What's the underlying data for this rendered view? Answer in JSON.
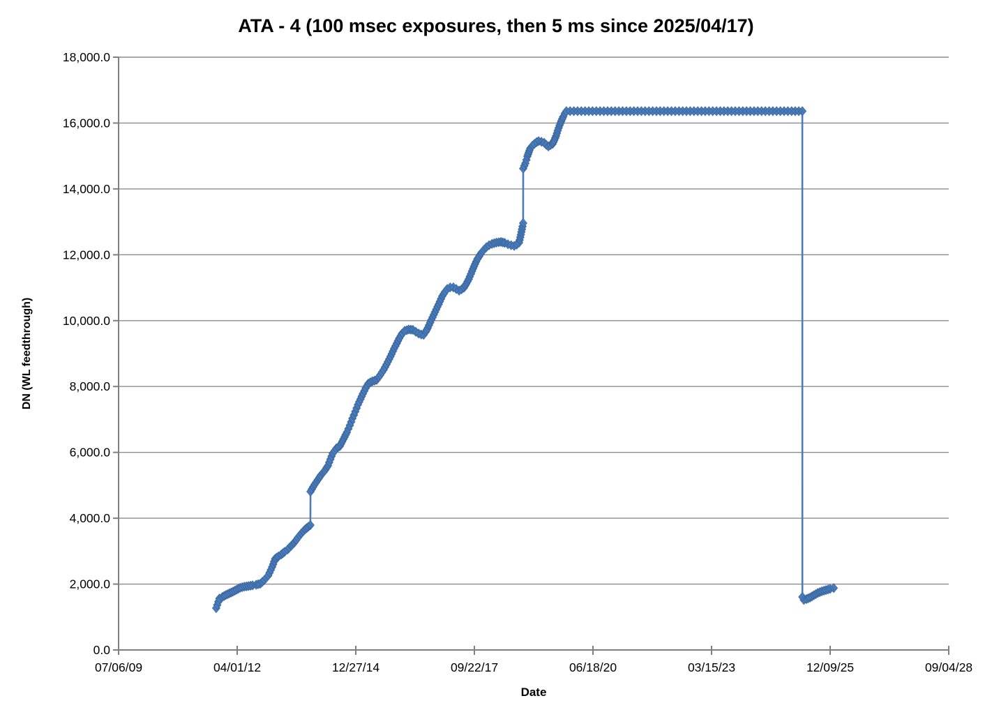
{
  "title": "ATA - 4 (100 msec exposures, then 5 ms since 2025/04/17)",
  "style": {
    "marker_color": "#4A7DBA",
    "marker_edge_color": "#3B67A0",
    "grid_color": "#8C8C8C",
    "axis_color": "#808080",
    "background": "#FFFFFF",
    "text_color": "#000000"
  },
  "chart_data": {
    "type": "scatter",
    "title": "ATA - 4 (100 msec exposures, then 5 ms since 2025/04/17)",
    "xlabel": "Date",
    "ylabel": "DN (WL feedthrough)",
    "grid": "horizontal-only",
    "legend": "none",
    "marker": "diamond",
    "marker_size_px": 12,
    "x_axis": {
      "base_date": "2009-07-06",
      "tick_interval_days": 1000,
      "span_days": 7000,
      "tick_labels": [
        "07/06/09",
        "04/01/12",
        "12/27/14",
        "09/22/17",
        "06/18/20",
        "03/15/23",
        "12/09/25",
        "09/04/28"
      ]
    },
    "y_axis": {
      "min": 0,
      "max": 18000,
      "step": 2000,
      "tick_labels": [
        "0.0",
        "2,000.0",
        "4,000.0",
        "6,000.0",
        "8,000.0",
        "10,000.0",
        "12,000.0",
        "14,000.0",
        "16,000.0",
        "18,000.0"
      ]
    },
    "key_events": {
      "first_point": "~Oct 2011 at ~1,270 DN",
      "step_jump_1": "~Dec 2013: ~3,800 to ~4,800 DN",
      "step_jump_2": "~Nov 2018: ~13,000 to ~14,600 DN",
      "saturation_plateau": "~Nov 2019 to 2025/04/17 at ~16,360 DN",
      "exposure_change_drop": "2025/04/17: drops to ~1,600 DN (5 ms exposures), recovering to ~1,880 DN"
    },
    "series": [
      {
        "name": "DN (WL feedthrough)",
        "x_units": "days since 2009-07-06",
        "points": [
          [
            823,
            1270
          ],
          [
            850,
            1560
          ],
          [
            875,
            1610
          ],
          [
            905,
            1670
          ],
          [
            935,
            1720
          ],
          [
            965,
            1770
          ],
          [
            995,
            1830
          ],
          [
            1025,
            1890
          ],
          [
            1060,
            1920
          ],
          [
            1095,
            1940
          ],
          [
            1130,
            1960
          ],
          [
            1160,
            1980
          ],
          [
            1194,
            2010
          ],
          [
            1228,
            2120
          ],
          [
            1262,
            2260
          ],
          [
            1295,
            2520
          ],
          [
            1320,
            2770
          ],
          [
            1348,
            2840
          ],
          [
            1372,
            2900
          ],
          [
            1400,
            2980
          ],
          [
            1425,
            3050
          ],
          [
            1455,
            3160
          ],
          [
            1482,
            3260
          ],
          [
            1512,
            3410
          ],
          [
            1541,
            3540
          ],
          [
            1572,
            3660
          ],
          [
            1600,
            3740
          ],
          [
            1617,
            3790
          ],
          [
            1618,
            4810
          ],
          [
            1640,
            4950
          ],
          [
            1665,
            5090
          ],
          [
            1688,
            5210
          ],
          [
            1706,
            5310
          ],
          [
            1724,
            5380
          ],
          [
            1745,
            5480
          ],
          [
            1766,
            5600
          ],
          [
            1786,
            5790
          ],
          [
            1806,
            5970
          ],
          [
            1836,
            6120
          ],
          [
            1866,
            6190
          ],
          [
            1896,
            6400
          ],
          [
            1925,
            6610
          ],
          [
            1950,
            6820
          ],
          [
            1972,
            7030
          ],
          [
            1996,
            7240
          ],
          [
            2018,
            7450
          ],
          [
            2040,
            7620
          ],
          [
            2060,
            7780
          ],
          [
            2083,
            7950
          ],
          [
            2106,
            8090
          ],
          [
            2140,
            8160
          ],
          [
            2176,
            8200
          ],
          [
            2206,
            8350
          ],
          [
            2235,
            8510
          ],
          [
            2259,
            8670
          ],
          [
            2282,
            8830
          ],
          [
            2303,
            8990
          ],
          [
            2323,
            9150
          ],
          [
            2346,
            9310
          ],
          [
            2366,
            9460
          ],
          [
            2390,
            9610
          ],
          [
            2413,
            9690
          ],
          [
            2447,
            9730
          ],
          [
            2482,
            9720
          ],
          [
            2506,
            9660
          ],
          [
            2530,
            9610
          ],
          [
            2552,
            9580
          ],
          [
            2572,
            9570
          ],
          [
            2590,
            9660
          ],
          [
            2607,
            9780
          ],
          [
            2627,
            9940
          ],
          [
            2647,
            10100
          ],
          [
            2668,
            10260
          ],
          [
            2689,
            10420
          ],
          [
            2709,
            10580
          ],
          [
            2729,
            10740
          ],
          [
            2751,
            10870
          ],
          [
            2771,
            10960
          ],
          [
            2796,
            11010
          ],
          [
            2823,
            11010
          ],
          [
            2847,
            10960
          ],
          [
            2871,
            10910
          ],
          [
            2892,
            10950
          ],
          [
            2912,
            11000
          ],
          [
            2932,
            11120
          ],
          [
            2953,
            11260
          ],
          [
            2971,
            11420
          ],
          [
            2989,
            11580
          ],
          [
            3006,
            11720
          ],
          [
            3024,
            11860
          ],
          [
            3041,
            11960
          ],
          [
            3059,
            12060
          ],
          [
            3080,
            12150
          ],
          [
            3101,
            12230
          ],
          [
            3124,
            12290
          ],
          [
            3148,
            12330
          ],
          [
            3186,
            12370
          ],
          [
            3224,
            12390
          ],
          [
            3256,
            12360
          ],
          [
            3283,
            12320
          ],
          [
            3310,
            12290
          ],
          [
            3336,
            12270
          ],
          [
            3357,
            12310
          ],
          [
            3377,
            12370
          ],
          [
            3392,
            12610
          ],
          [
            3406,
            12860
          ],
          [
            3411,
            12960
          ],
          [
            3412,
            14620
          ],
          [
            3421,
            14700
          ],
          [
            3430,
            14780
          ],
          [
            3439,
            14880
          ],
          [
            3447,
            14990
          ],
          [
            3459,
            15110
          ],
          [
            3471,
            15230
          ],
          [
            3489,
            15310
          ],
          [
            3507,
            15370
          ],
          [
            3525,
            15420
          ],
          [
            3542,
            15450
          ],
          [
            3566,
            15430
          ],
          [
            3589,
            15400
          ],
          [
            3606,
            15340
          ],
          [
            3624,
            15290
          ],
          [
            3642,
            15330
          ],
          [
            3660,
            15370
          ],
          [
            3674,
            15480
          ],
          [
            3689,
            15610
          ],
          [
            3703,
            15770
          ],
          [
            3718,
            15930
          ],
          [
            3733,
            16060
          ],
          [
            3748,
            16190
          ],
          [
            3763,
            16290
          ],
          [
            3776,
            16360
          ],
          [
            3870,
            16360
          ],
          [
            3965,
            16360
          ],
          [
            4060,
            16360
          ],
          [
            4155,
            16360
          ],
          [
            4250,
            16360
          ],
          [
            4345,
            16360
          ],
          [
            4440,
            16360
          ],
          [
            4535,
            16360
          ],
          [
            4630,
            16360
          ],
          [
            4725,
            16360
          ],
          [
            4820,
            16360
          ],
          [
            4915,
            16360
          ],
          [
            5010,
            16360
          ],
          [
            5105,
            16360
          ],
          [
            5200,
            16360
          ],
          [
            5295,
            16360
          ],
          [
            5390,
            16360
          ],
          [
            5485,
            16360
          ],
          [
            5580,
            16360
          ],
          [
            5675,
            16360
          ],
          [
            5765,
            16360
          ],
          [
            5766,
            1610
          ],
          [
            5778,
            1520
          ],
          [
            5800,
            1545
          ],
          [
            5830,
            1590
          ],
          [
            5862,
            1660
          ],
          [
            5895,
            1730
          ],
          [
            5930,
            1780
          ],
          [
            5965,
            1820
          ],
          [
            6000,
            1855
          ],
          [
            6030,
            1880
          ]
        ]
      }
    ]
  }
}
